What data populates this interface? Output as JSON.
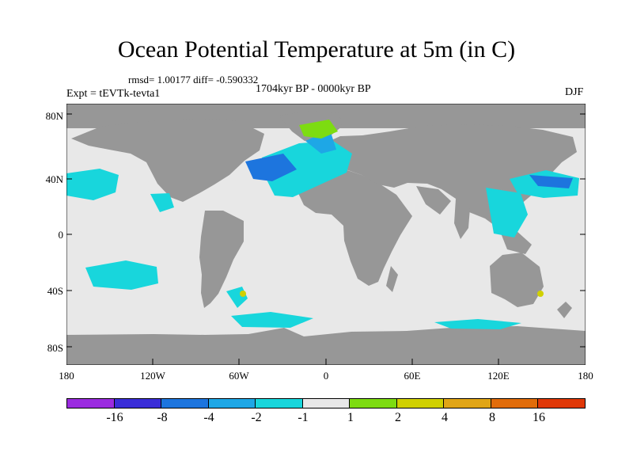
{
  "header": {
    "title": "Ocean Potential Temperature at 5m (in C)",
    "stats": "rmsd= 1.00177 diff= -0.590332",
    "experiment": "Expt = tEVTk-tevta1",
    "period": "1704kyr BP - 0000kyr BP",
    "season": "DJF"
  },
  "map": {
    "land_color": "#979797",
    "ocean_color": "#e8e8e8",
    "latitude_ticks": [
      "80N",
      "40N",
      "0",
      "40S",
      "80S"
    ],
    "longitude_ticks": [
      "180",
      "120W",
      "60W",
      "0",
      "60E",
      "120E",
      "180"
    ]
  },
  "legend": {
    "colors": [
      "#9b2be0",
      "#3a2dd8",
      "#1d75de",
      "#1ea7e6",
      "#18d6dc",
      "#e8e8e8",
      "#7ddc11",
      "#d0d000",
      "#e1a516",
      "#e16c0a",
      "#e03808"
    ],
    "labels": [
      "-16",
      "-8",
      "-4",
      "-2",
      "-1",
      "1",
      "2",
      "4",
      "8",
      "16"
    ]
  }
}
